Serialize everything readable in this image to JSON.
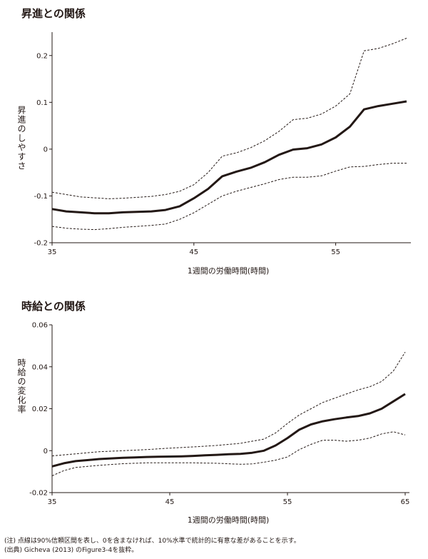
{
  "chart_data": [
    {
      "type": "line",
      "title": "昇進との関係",
      "xlabel": "1週間の労働時間(時間)",
      "ylabel": "昇進のしやすさ",
      "xlim": [
        35,
        60
      ],
      "ylim": [
        -0.2,
        0.25
      ],
      "xticks": [
        "35",
        "45",
        "55"
      ],
      "yticks": [
        "0.2",
        "0.1",
        "0",
        "-0.1",
        "-0.2"
      ],
      "grid": false,
      "series": [
        {
          "style": "solid",
          "x": [
            35,
            36,
            37,
            38,
            39,
            40,
            41,
            42,
            43,
            44,
            45,
            46,
            47,
            48,
            49,
            50,
            51,
            52,
            53,
            54,
            55,
            56,
            57,
            58,
            59,
            60
          ],
          "y": [
            -0.128,
            -0.133,
            -0.135,
            -0.137,
            -0.137,
            -0.135,
            -0.134,
            -0.133,
            -0.13,
            -0.122,
            -0.105,
            -0.085,
            -0.058,
            -0.048,
            -0.04,
            -0.028,
            -0.012,
            -0.001,
            0.002,
            0.01,
            0.025,
            0.048,
            0.085,
            0.092,
            0.097,
            0.102
          ]
        },
        {
          "style": "dashed",
          "x": [
            35,
            36,
            37,
            38,
            39,
            40,
            41,
            42,
            43,
            44,
            45,
            46,
            47,
            48,
            49,
            50,
            51,
            52,
            53,
            54,
            55,
            56,
            57,
            58,
            59,
            60
          ],
          "y": [
            -0.092,
            -0.097,
            -0.102,
            -0.104,
            -0.106,
            -0.105,
            -0.103,
            -0.101,
            -0.097,
            -0.09,
            -0.076,
            -0.05,
            -0.015,
            -0.008,
            0.003,
            0.018,
            0.038,
            0.063,
            0.066,
            0.075,
            0.092,
            0.118,
            0.21,
            0.215,
            0.225,
            0.237
          ]
        },
        {
          "style": "dashed",
          "x": [
            35,
            36,
            37,
            38,
            39,
            40,
            41,
            42,
            43,
            44,
            45,
            46,
            47,
            48,
            49,
            50,
            51,
            52,
            53,
            54,
            55,
            56,
            57,
            58,
            59,
            60
          ],
          "y": [
            -0.165,
            -0.169,
            -0.171,
            -0.172,
            -0.17,
            -0.167,
            -0.165,
            -0.163,
            -0.16,
            -0.15,
            -0.136,
            -0.118,
            -0.1,
            -0.09,
            -0.082,
            -0.074,
            -0.065,
            -0.06,
            -0.06,
            -0.057,
            -0.047,
            -0.038,
            -0.037,
            -0.033,
            -0.03,
            -0.03
          ]
        }
      ]
    },
    {
      "type": "line",
      "title": "時給との関係",
      "xlabel": "1週間の労働時間(時間)",
      "ylabel": "時給の変化率",
      "xlim": [
        35,
        65
      ],
      "ylim": [
        -0.02,
        0.06
      ],
      "xticks": [
        "35",
        "45",
        "55",
        "65"
      ],
      "yticks": [
        "0.06",
        "0.04",
        "0.02",
        "0",
        "-0.02"
      ],
      "grid": false,
      "series": [
        {
          "style": "solid",
          "x": [
            35,
            36,
            37,
            38,
            39,
            40,
            41,
            42,
            43,
            44,
            45,
            46,
            47,
            48,
            49,
            50,
            51,
            52,
            53,
            54,
            55,
            56,
            57,
            58,
            59,
            60,
            61,
            62,
            63,
            64,
            65
          ],
          "y": [
            -0.0075,
            -0.006,
            -0.005,
            -0.0045,
            -0.004,
            -0.0037,
            -0.0034,
            -0.0032,
            -0.003,
            -0.0029,
            -0.0028,
            -0.0027,
            -0.0025,
            -0.0022,
            -0.002,
            -0.0017,
            -0.0015,
            -0.001,
            0.0,
            0.0025,
            0.006,
            0.01,
            0.0125,
            0.014,
            0.015,
            0.0158,
            0.0165,
            0.0178,
            0.02,
            0.0235,
            0.027
          ]
        },
        {
          "style": "dashed",
          "x": [
            35,
            37,
            39,
            41,
            43,
            45,
            47,
            49,
            51,
            52,
            53,
            54,
            55,
            56,
            57,
            58,
            59,
            60,
            61,
            62,
            63,
            64,
            65
          ],
          "y": [
            -0.0025,
            -0.0015,
            -0.0005,
            0.0,
            0.0005,
            0.0012,
            0.0018,
            0.0025,
            0.0035,
            0.0045,
            0.0055,
            0.0085,
            0.013,
            0.017,
            0.02,
            0.023,
            0.025,
            0.027,
            0.029,
            0.0305,
            0.033,
            0.038,
            0.047
          ]
        },
        {
          "style": "dashed",
          "x": [
            35,
            36,
            37,
            39,
            41,
            43,
            45,
            47,
            49,
            51,
            52,
            53,
            54,
            55,
            56,
            57,
            58,
            59,
            60,
            61,
            62,
            63,
            64,
            65
          ],
          "y": [
            -0.012,
            -0.0095,
            -0.008,
            -0.007,
            -0.0062,
            -0.0058,
            -0.0058,
            -0.0058,
            -0.006,
            -0.0065,
            -0.0063,
            -0.0055,
            -0.0045,
            -0.003,
            0.0005,
            0.003,
            0.005,
            0.005,
            0.0045,
            0.005,
            0.006,
            0.008,
            0.009,
            0.0075
          ]
        }
      ]
    }
  ],
  "notes": {
    "line1": "(注) 点線は90%信頼区間を表し、0を含まなければ、10%水準で統計的に有意な差があることを示す。",
    "line2": "(出典) Gicheva (2013) のFigure3-4を抜粋。"
  }
}
